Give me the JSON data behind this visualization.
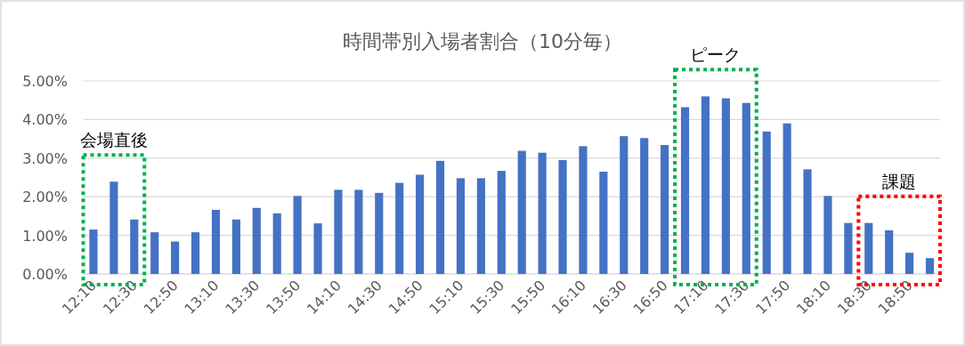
{
  "chart_data": {
    "type": "bar",
    "title": "時間帯別入場者割合（10分毎）",
    "categories": [
      "12:10",
      null,
      "12:30",
      null,
      "12:50",
      null,
      "13:10",
      null,
      "13:30",
      null,
      "13:50",
      null,
      "14:10",
      null,
      "14:30",
      null,
      "14:50",
      null,
      "15:10",
      null,
      "15:30",
      null,
      "15:50",
      null,
      "16:10",
      null,
      "16:30",
      null,
      "16:50",
      null,
      "17:10",
      null,
      "17:30",
      null,
      "17:50",
      null,
      "18:10",
      null,
      "18:30",
      null,
      "18:50",
      null
    ],
    "values": [
      1.15,
      2.39,
      1.41,
      1.08,
      0.84,
      1.08,
      1.66,
      1.41,
      1.71,
      1.57,
      2.02,
      1.31,
      2.18,
      2.18,
      2.1,
      2.36,
      2.57,
      2.93,
      2.48,
      2.48,
      2.67,
      3.19,
      3.14,
      2.95,
      3.31,
      2.65,
      3.57,
      3.52,
      3.34,
      4.32,
      4.6,
      4.55,
      4.43,
      3.69,
      3.9,
      2.71,
      2.02,
      1.32,
      1.32,
      1.13,
      0.55,
      0.41
    ],
    "color": "#4472c4",
    "ylim": [
      0,
      5
    ],
    "yticks": [
      {
        "value": 0,
        "label": "0.00%"
      },
      {
        "value": 1,
        "label": "1.00%"
      },
      {
        "value": 2,
        "label": "2.00%"
      },
      {
        "value": 3,
        "label": "3.00%"
      },
      {
        "value": 4,
        "label": "4.00%"
      },
      {
        "value": 5,
        "label": "5.00%"
      }
    ],
    "grid": "y",
    "annotations": [
      "会場直後",
      "ピーク",
      "課題"
    ]
  }
}
